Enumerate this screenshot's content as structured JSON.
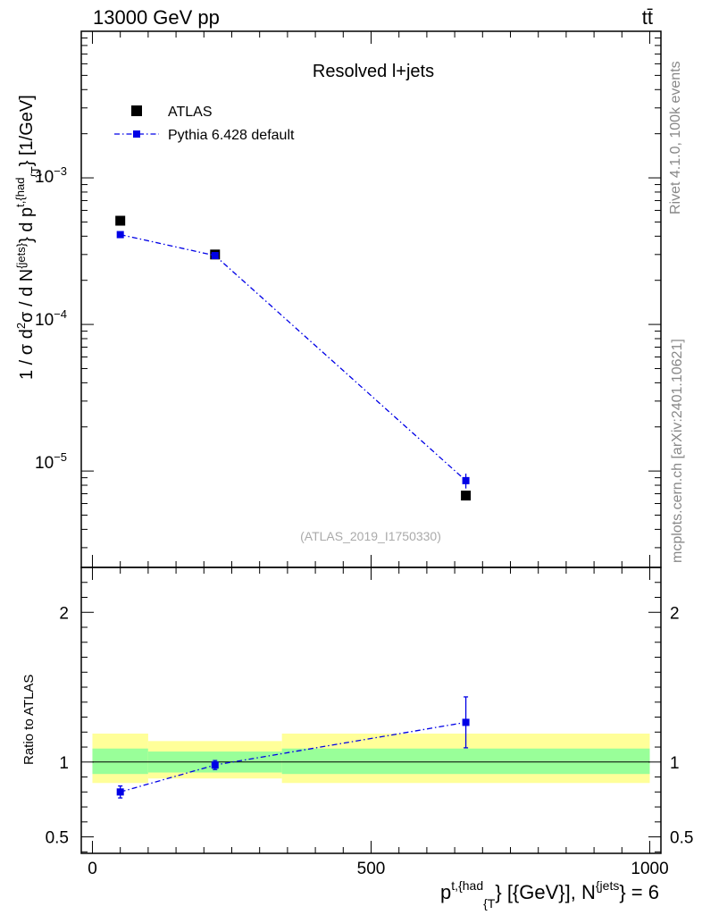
{
  "header": {
    "left": "13000 GeV pp",
    "right": "tt̄"
  },
  "side_labels": {
    "rivet": "Rivet 4.1.0,  100k events",
    "mcplots": "mcplots.cern.ch [arXiv:2401.10621]"
  },
  "colors": {
    "data": "#000000",
    "mc": "#0000e6",
    "band_inner": "#99ff99",
    "band_outer": "#ffff99"
  },
  "chart_data": [
    {
      "type": "scatter",
      "title": "Resolved l+jets",
      "watermark": "(ATLAS_2019_I1750330)",
      "ylabel_parts": {
        "main": "1 / σ d",
        "sup1": "2",
        "mid1": "σ / d N",
        "sup2": "{jets}",
        "mid2": "} d p",
        "sup3": "t,{had",
        "sub3": "{T",
        "tail": "} [1/GeV]"
      },
      "yscale": "log",
      "ylim": [
        2.2e-06,
        0.01
      ],
      "xlim": [
        -20,
        1020
      ],
      "y_tick_labels": [
        {
          "value": 0.001,
          "base": "10",
          "exp": "−3"
        },
        {
          "value": 0.0001,
          "base": "10",
          "exp": "−4"
        },
        {
          "value": 1e-05,
          "base": "10",
          "exp": "−5"
        }
      ],
      "legend": [
        {
          "name": "ATLAS",
          "style": "square"
        },
        {
          "name": "Pythia 6.428 default",
          "style": "dashdot-line-square"
        }
      ],
      "series": [
        {
          "name": "ATLAS",
          "x": [
            50,
            220,
            670
          ],
          "y": [
            0.00051,
            0.0003,
            6.8e-06
          ],
          "err": [
            0,
            0,
            0
          ]
        },
        {
          "name": "Pythia 6.428 default",
          "x": [
            50,
            220,
            670
          ],
          "y": [
            0.00041,
            0.000295,
            8.6e-06
          ],
          "err": [
            1e-05,
            1e-05,
            1e-06
          ]
        }
      ]
    },
    {
      "type": "scatter",
      "ylabel": "Ratio to ATLAS",
      "ylim": [
        0.39,
        2.3
      ],
      "xlim": [
        -20,
        1020
      ],
      "y_ticks": [
        0.5,
        1,
        2
      ],
      "y_tick_labels": [
        "0.5",
        "1",
        "2"
      ],
      "x_ticks": [
        0,
        500,
        1000
      ],
      "x_tick_labels": [
        "0",
        "500",
        "1000"
      ],
      "xlabel_parts": {
        "p": "p",
        "sup1": "t,{had",
        "sub1": "{T",
        "mid": "} [{GeV}], N",
        "sup2": "{jets",
        "tail": "} = 6"
      },
      "bands": [
        {
          "x0": 0,
          "x1": 100,
          "inner": [
            0.92,
            1.09
          ],
          "outer": [
            0.86,
            1.19
          ]
        },
        {
          "x0": 100,
          "x1": 340,
          "inner": [
            0.93,
            1.07
          ],
          "outer": [
            0.89,
            1.14
          ]
        },
        {
          "x0": 340,
          "x1": 1000,
          "inner": [
            0.92,
            1.09
          ],
          "outer": [
            0.86,
            1.19
          ]
        }
      ],
      "series": [
        {
          "name": "Pythia 6.428 default",
          "x": [
            50,
            220,
            670
          ],
          "y": [
            0.8,
            0.98,
            1.265
          ],
          "err": [
            0.04,
            0.03,
            0.17
          ]
        }
      ]
    }
  ]
}
